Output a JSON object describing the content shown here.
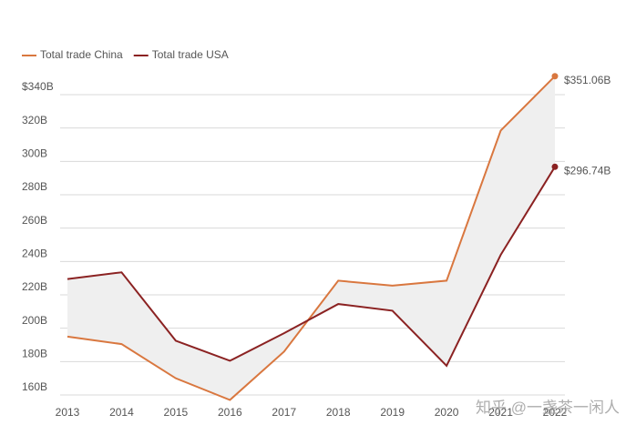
{
  "chart_data": {
    "type": "line",
    "categories": [
      "2013",
      "2014",
      "2015",
      "2016",
      "2017",
      "2018",
      "2019",
      "2020",
      "2021",
      "2022"
    ],
    "series": [
      {
        "name": "Total trade China",
        "color": "#d9773f",
        "values": [
          195,
          190.5,
          170,
          157,
          186,
          228.5,
          225.5,
          228.5,
          318.5,
          351.06
        ],
        "value_labels": [
          null,
          null,
          null,
          null,
          null,
          null,
          null,
          null,
          null,
          "$351.06B"
        ]
      },
      {
        "name": "Total trade USA",
        "color": "#8b2222",
        "values": [
          229.5,
          233.5,
          192.5,
          180.5,
          197,
          214.5,
          210.5,
          177.5,
          244,
          296.74
        ],
        "value_labels": [
          null,
          null,
          null,
          null,
          null,
          null,
          null,
          null,
          null,
          "$296.74B"
        ]
      }
    ],
    "ylim": [
      152,
      352
    ],
    "yticks": [
      {
        "value": 160,
        "label": "160B"
      },
      {
        "value": 180,
        "label": "180B"
      },
      {
        "value": 200,
        "label": "200B"
      },
      {
        "value": 220,
        "label": "220B"
      },
      {
        "value": 240,
        "label": "240B"
      },
      {
        "value": 260,
        "label": "260B"
      },
      {
        "value": 280,
        "label": "280B"
      },
      {
        "value": 300,
        "label": "300B"
      },
      {
        "value": 320,
        "label": "320B"
      },
      {
        "value": 340,
        "label": "$340B"
      }
    ],
    "grid": true,
    "watermark": "知乎 @一盏茶一闲人"
  }
}
